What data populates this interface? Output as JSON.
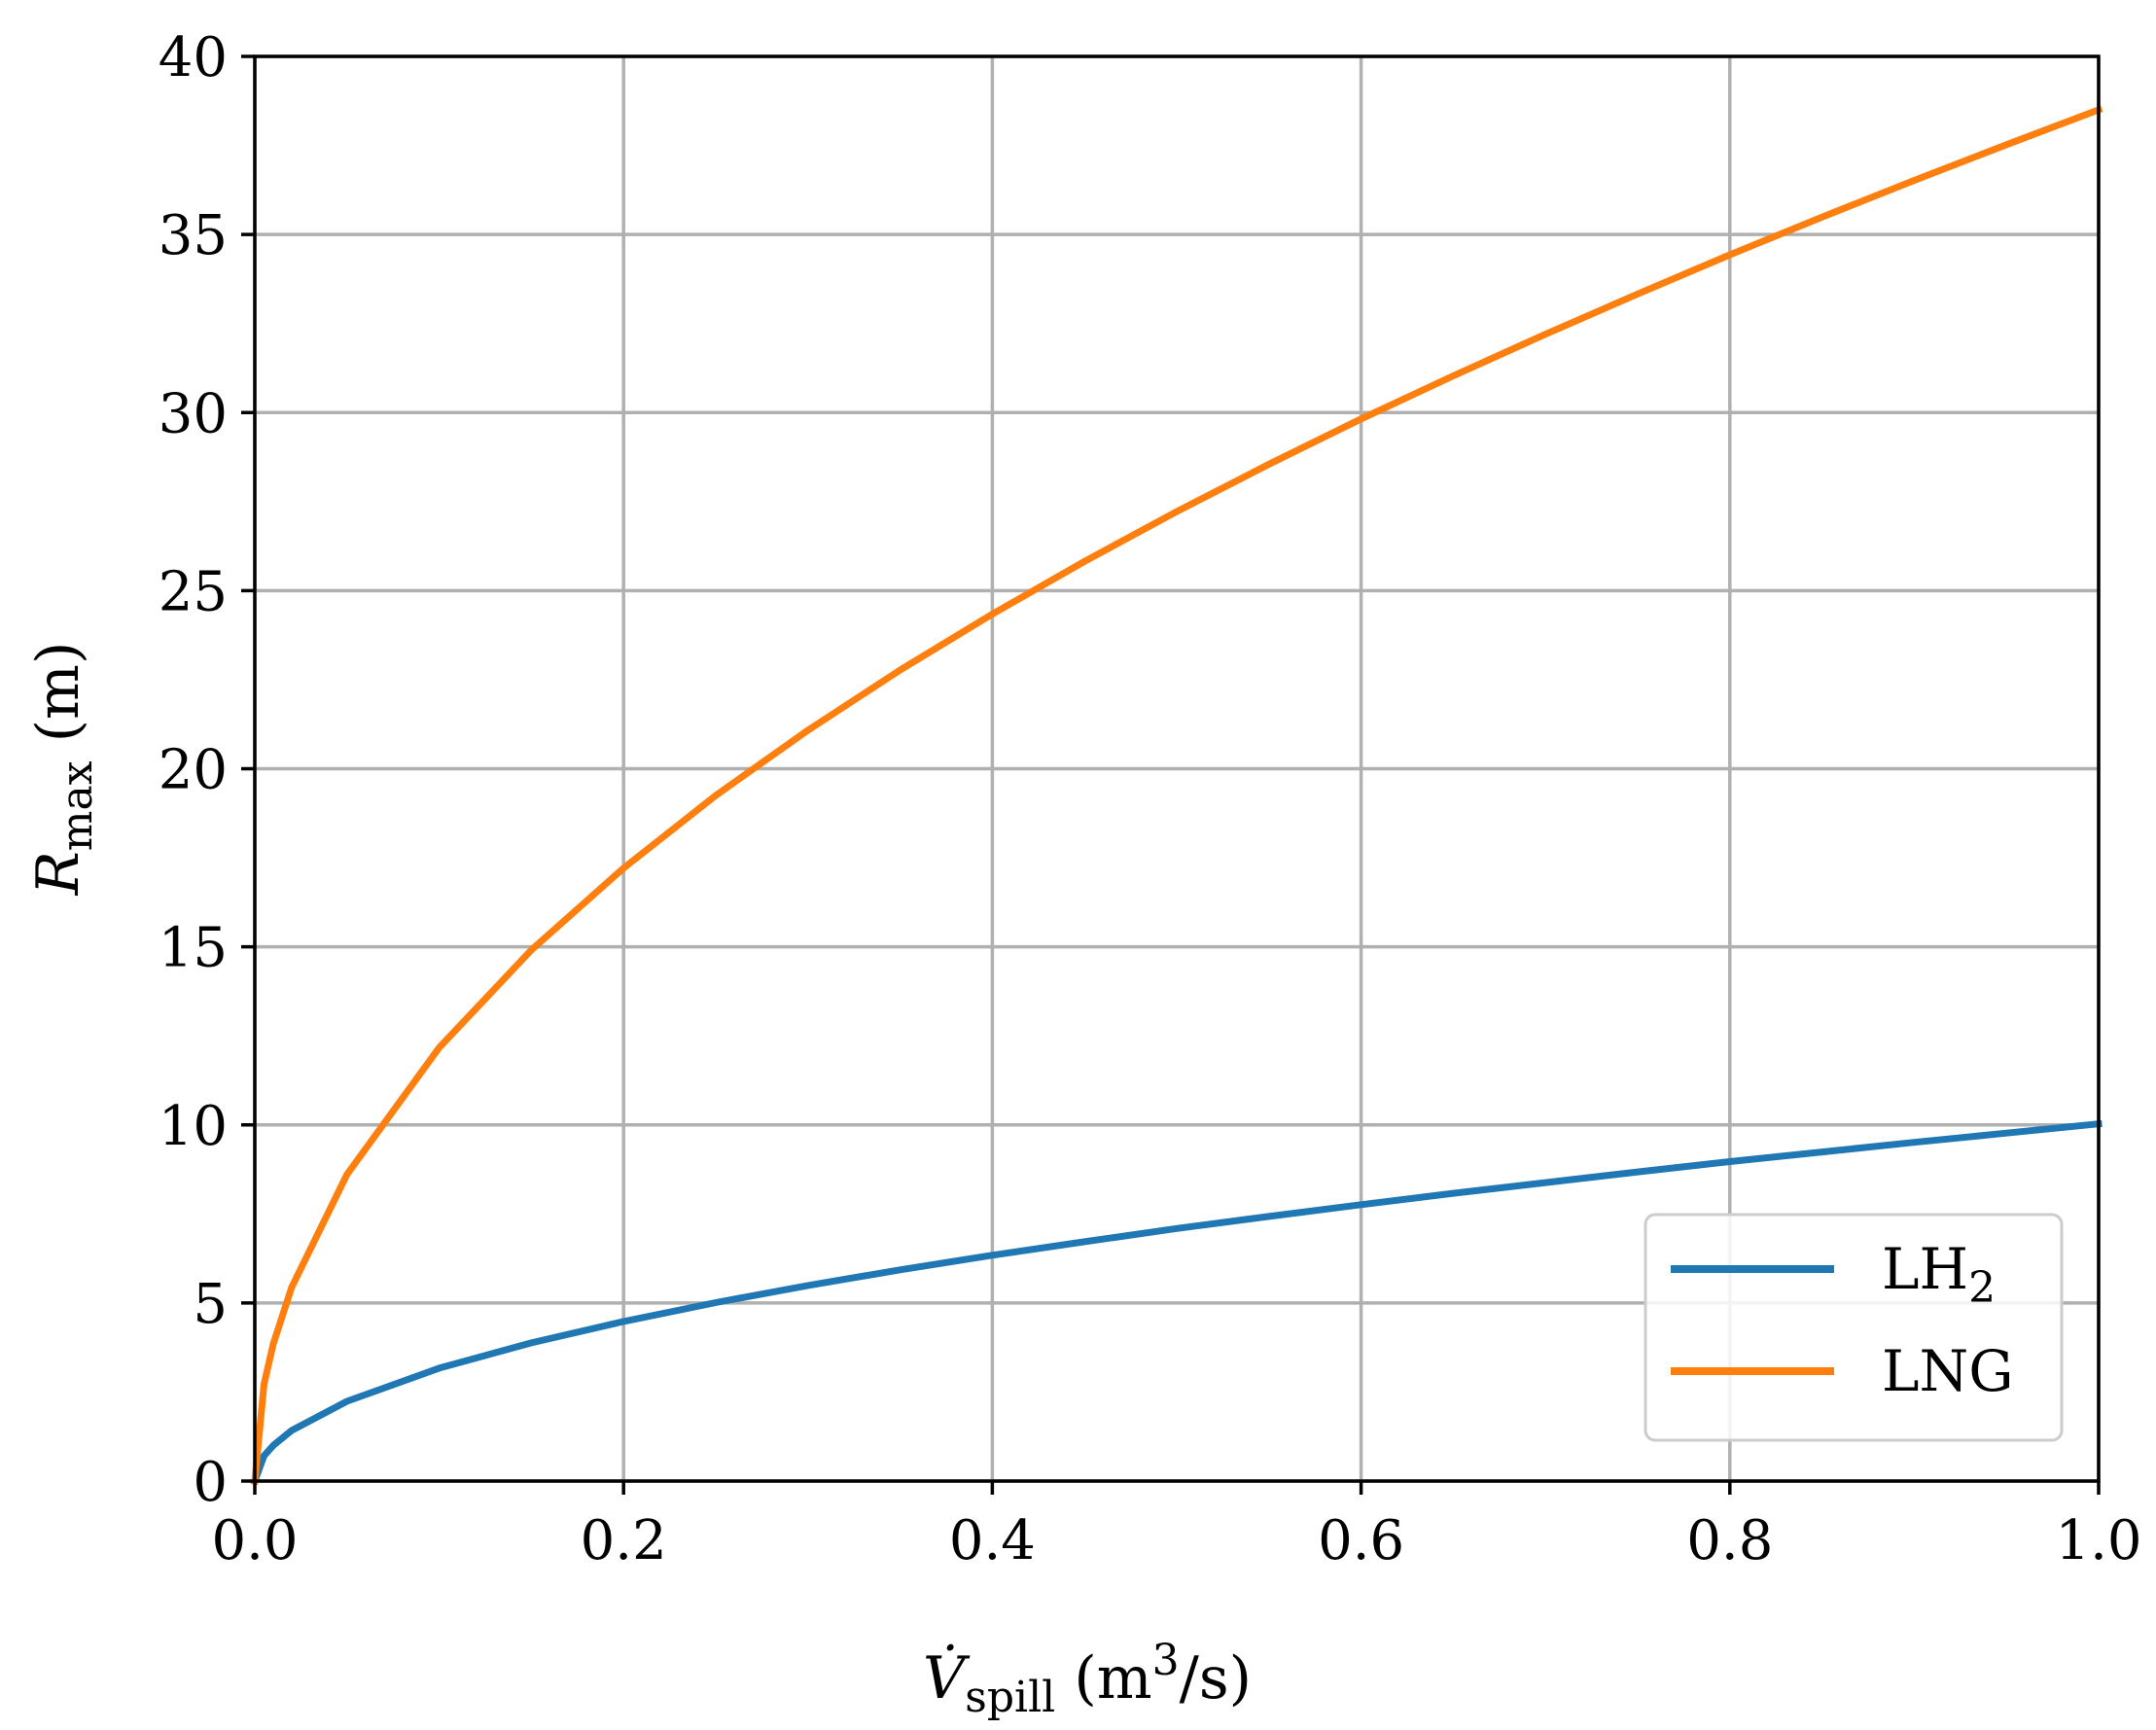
{
  "chart_data": {
    "type": "line",
    "title": "",
    "xlabel": {
      "symbol": "V̇",
      "subscript": "spill",
      "units_prefix": " (m",
      "units_exponent": "3",
      "units_suffix": "/s)"
    },
    "ylabel": {
      "symbol": "R",
      "subscript": "max",
      "units": " (m)"
    },
    "xlim": [
      0.0,
      1.0
    ],
    "ylim": [
      0,
      40
    ],
    "x_ticks": [
      0.0,
      0.2,
      0.4,
      0.6,
      0.8,
      1.0
    ],
    "x_tick_labels": [
      "0.0",
      "0.2",
      "0.4",
      "0.6",
      "0.8",
      "1.0"
    ],
    "y_ticks": [
      0,
      5,
      10,
      15,
      20,
      25,
      30,
      35,
      40
    ],
    "y_tick_labels": [
      "0",
      "5",
      "10",
      "15",
      "20",
      "25",
      "30",
      "35",
      "40"
    ],
    "grid": true,
    "legend_position": "lower-right",
    "x": [
      0.0,
      0.005,
      0.01,
      0.02,
      0.05,
      0.1,
      0.15,
      0.2,
      0.25,
      0.3,
      0.35,
      0.4,
      0.45,
      0.5,
      0.55,
      0.6,
      0.65,
      0.7,
      0.75,
      0.8,
      0.85,
      0.9,
      0.95,
      1.0
    ],
    "series": [
      {
        "name": "LH2",
        "legend_base": "LH",
        "legend_sub": "2",
        "color": "#1f77b4",
        "values": [
          0.0,
          0.71,
          1.0,
          1.42,
          2.24,
          3.17,
          3.88,
          4.48,
          5.01,
          5.49,
          5.93,
          6.34,
          6.72,
          7.09,
          7.43,
          7.76,
          8.08,
          8.38,
          8.68,
          8.97,
          9.24,
          9.51,
          9.77,
          10.03
        ]
      },
      {
        "name": "LNG",
        "legend_base": "LNG",
        "legend_sub": "",
        "color": "#ff7f0e",
        "values": [
          0.0,
          2.72,
          3.85,
          5.44,
          8.61,
          12.17,
          14.91,
          17.21,
          19.25,
          21.08,
          22.77,
          24.34,
          25.82,
          27.22,
          28.55,
          29.82,
          31.03,
          32.2,
          33.33,
          34.43,
          35.49,
          36.52,
          37.52,
          38.5
        ]
      }
    ]
  }
}
